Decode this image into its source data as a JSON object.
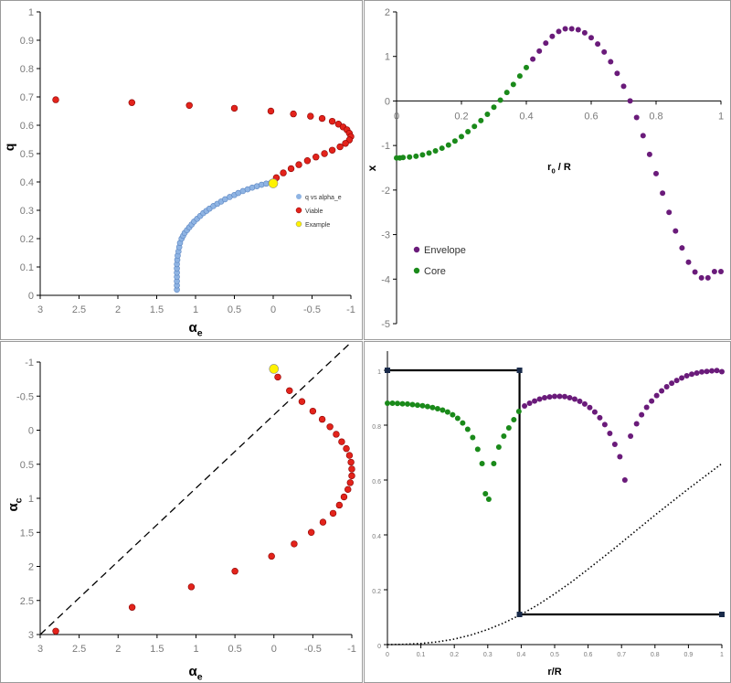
{
  "colors": {
    "q_series": "#8fb4e3",
    "viable": "#e3231b",
    "example": "#fff200",
    "envelope": "#6a1b7a",
    "core": "#1a8a1a",
    "axis": "#000000",
    "tick_label": "#7a7a7a"
  },
  "chart_data": [
    {
      "type": "scatter",
      "xlabel": "α",
      "xlabel_sub": "e",
      "ylabel": "q",
      "xlim": [
        3,
        -1
      ],
      "ylim": [
        0,
        1
      ],
      "x_reversed": true,
      "xticks": [
        3,
        2.5,
        2,
        1.5,
        1,
        0.5,
        0,
        -0.5,
        -1
      ],
      "yticks": [
        0,
        0.1,
        0.2,
        0.3,
        0.4,
        0.5,
        0.6,
        0.7,
        0.8,
        0.9,
        1
      ],
      "legend": [
        "q vs alpha_e",
        "Viable",
        "Example"
      ],
      "legend_position": "right",
      "series": [
        {
          "name": "q vs alpha_e",
          "x": [
            1.24,
            1.24,
            1.24,
            1.24,
            1.24,
            1.24,
            1.24,
            1.235,
            1.23,
            1.22,
            1.21,
            1.2,
            1.18,
            1.16,
            1.14,
            1.11,
            1.08,
            1.05,
            1.02,
            0.98,
            0.94,
            0.9,
            0.86,
            0.82,
            0.77,
            0.72,
            0.67,
            0.62,
            0.56,
            0.5,
            0.45,
            0.39,
            0.33,
            0.27,
            0.21,
            0.15,
            0.09,
            0.03,
            0.0
          ],
          "y": [
            0.02,
            0.035,
            0.05,
            0.065,
            0.08,
            0.095,
            0.11,
            0.125,
            0.14,
            0.155,
            0.17,
            0.185,
            0.2,
            0.21,
            0.22,
            0.23,
            0.24,
            0.25,
            0.26,
            0.27,
            0.28,
            0.29,
            0.298,
            0.306,
            0.315,
            0.323,
            0.331,
            0.339,
            0.347,
            0.354,
            0.361,
            0.368,
            0.374,
            0.38,
            0.385,
            0.39,
            0.394,
            0.397,
            0.398
          ]
        },
        {
          "name": "Viable",
          "x": [
            2.8,
            1.82,
            1.08,
            0.5,
            0.03,
            -0.26,
            -0.48,
            -0.63,
            -0.76,
            -0.84,
            -0.9,
            -0.95,
            -0.98,
            -1.0,
            -0.98,
            -0.93,
            -0.86,
            -0.76,
            -0.66,
            -0.55,
            -0.44,
            -0.33,
            -0.23,
            -0.13,
            -0.04
          ],
          "y": [
            0.69,
            0.68,
            0.67,
            0.66,
            0.65,
            0.64,
            0.632,
            0.624,
            0.614,
            0.604,
            0.594,
            0.584,
            0.572,
            0.56,
            0.548,
            0.536,
            0.524,
            0.512,
            0.5,
            0.488,
            0.475,
            0.461,
            0.447,
            0.432,
            0.415
          ]
        },
        {
          "name": "Example",
          "x": [
            0.0
          ],
          "y": [
            0.395
          ]
        }
      ]
    },
    {
      "type": "scatter",
      "xlabel": "r",
      "xlabel_sub": "0",
      "xlabel_suffix": " / R",
      "ylabel": "x",
      "xlim": [
        0,
        1
      ],
      "ylim": [
        -5,
        2
      ],
      "xticks": [
        0,
        0.2,
        0.4,
        0.6,
        0.8,
        1
      ],
      "yticks": [
        -5,
        -4,
        -3,
        -2,
        -1,
        0,
        1,
        2
      ],
      "legend": [
        "Envelope",
        "Core"
      ],
      "legend_position": "bottom-left",
      "series": [
        {
          "name": "Core",
          "x": [
            0.0,
            0.01,
            0.02,
            0.04,
            0.06,
            0.08,
            0.1,
            0.12,
            0.14,
            0.16,
            0.18,
            0.2,
            0.22,
            0.24,
            0.26,
            0.28,
            0.3,
            0.32,
            0.34,
            0.36,
            0.38,
            0.4
          ],
          "y": [
            -1.28,
            -1.28,
            -1.27,
            -1.26,
            -1.24,
            -1.21,
            -1.17,
            -1.12,
            -1.06,
            -0.99,
            -0.9,
            -0.8,
            -0.69,
            -0.57,
            -0.44,
            -0.3,
            -0.14,
            0.02,
            0.19,
            0.37,
            0.56,
            0.75
          ]
        },
        {
          "name": "Envelope",
          "x": [
            0.42,
            0.44,
            0.46,
            0.48,
            0.5,
            0.52,
            0.54,
            0.56,
            0.58,
            0.6,
            0.62,
            0.64,
            0.66,
            0.68,
            0.7,
            0.72,
            0.74,
            0.76,
            0.78,
            0.8,
            0.82,
            0.84,
            0.86,
            0.88,
            0.9,
            0.92,
            0.94,
            0.96,
            0.98,
            1.0
          ],
          "y": [
            0.94,
            1.12,
            1.3,
            1.45,
            1.56,
            1.62,
            1.62,
            1.6,
            1.53,
            1.42,
            1.28,
            1.1,
            0.88,
            0.62,
            0.33,
            0.0,
            -0.37,
            -0.78,
            -1.2,
            -1.63,
            -2.07,
            -2.5,
            -2.92,
            -3.3,
            -3.62,
            -3.84,
            -3.97,
            -3.97,
            -3.83,
            -3.83
          ]
        }
      ]
    },
    {
      "type": "scatter",
      "xlabel": "α",
      "xlabel_sub": "e",
      "ylabel": "α",
      "ylabel_sub": "c",
      "xlim": [
        3,
        -1
      ],
      "ylim": [
        3,
        -1
      ],
      "x_reversed": true,
      "y_reversed": true,
      "xticks": [
        3,
        2.5,
        2,
        1.5,
        1,
        0.5,
        0,
        -0.5,
        -1
      ],
      "yticks": [
        -1,
        -0.5,
        0,
        0.5,
        1,
        1.5,
        2,
        2.5,
        3
      ],
      "diagonal_dashed": true,
      "series": [
        {
          "name": "Viable",
          "x": [
            2.8,
            1.82,
            1.06,
            0.5,
            0.03,
            -0.26,
            -0.48,
            -0.63,
            -0.76,
            -0.84,
            -0.9,
            -0.95,
            -0.98,
            -1.0,
            -1.0,
            -0.99,
            -0.97,
            -0.93,
            -0.87,
            -0.8,
            -0.72,
            -0.62,
            -0.5,
            -0.36,
            -0.2,
            -0.05
          ],
          "y": [
            2.95,
            2.6,
            2.3,
            2.07,
            1.85,
            1.67,
            1.5,
            1.35,
            1.22,
            1.1,
            0.98,
            0.87,
            0.77,
            0.67,
            0.57,
            0.47,
            0.37,
            0.27,
            0.17,
            0.06,
            -0.05,
            -0.16,
            -0.28,
            -0.42,
            -0.58,
            -0.78
          ]
        },
        {
          "name": "Example",
          "x": [
            0.0
          ],
          "y": [
            -0.9
          ]
        }
      ]
    },
    {
      "type": "scatter",
      "xlabel": "r/R",
      "xlim": [
        0,
        1
      ],
      "ylim": [
        0,
        1.05
      ],
      "xticks": [
        0,
        0.1,
        0.2,
        0.3,
        0.4,
        0.5,
        0.6,
        0.7,
        0.8,
        0.9,
        1
      ],
      "yticks": [
        0,
        0.2,
        0.4,
        0.6,
        0.8,
        1
      ],
      "series": [
        {
          "name": "Core",
          "x": [
            0.0,
            0.015,
            0.03,
            0.045,
            0.06,
            0.075,
            0.09,
            0.105,
            0.12,
            0.135,
            0.15,
            0.165,
            0.18,
            0.195,
            0.21,
            0.225,
            0.24,
            0.255,
            0.27,
            0.283,
            0.293,
            0.303,
            0.318,
            0.333,
            0.348,
            0.363,
            0.378,
            0.393
          ],
          "y": [
            0.88,
            0.88,
            0.879,
            0.878,
            0.877,
            0.875,
            0.873,
            0.871,
            0.868,
            0.864,
            0.86,
            0.855,
            0.848,
            0.838,
            0.825,
            0.808,
            0.785,
            0.755,
            0.712,
            0.66,
            0.55,
            0.53,
            0.66,
            0.72,
            0.76,
            0.79,
            0.82,
            0.85
          ]
        },
        {
          "name": "Envelope",
          "x": [
            0.41,
            0.425,
            0.44,
            0.455,
            0.47,
            0.485,
            0.5,
            0.515,
            0.53,
            0.545,
            0.56,
            0.575,
            0.59,
            0.605,
            0.62,
            0.635,
            0.65,
            0.665,
            0.68,
            0.695,
            0.71,
            0.727,
            0.745,
            0.76,
            0.775,
            0.79,
            0.805,
            0.82,
            0.835,
            0.85,
            0.865,
            0.88,
            0.895,
            0.91,
            0.925,
            0.94,
            0.955,
            0.97,
            0.985,
            1.0
          ],
          "y": [
            0.87,
            0.88,
            0.888,
            0.895,
            0.9,
            0.903,
            0.905,
            0.905,
            0.904,
            0.9,
            0.895,
            0.887,
            0.877,
            0.864,
            0.848,
            0.827,
            0.802,
            0.77,
            0.73,
            0.685,
            0.6,
            0.76,
            0.805,
            0.838,
            0.865,
            0.888,
            0.908,
            0.925,
            0.94,
            0.953,
            0.963,
            0.972,
            0.98,
            0.986,
            0.99,
            0.994,
            0.996,
            0.998,
            0.999,
            0.995
          ]
        },
        {
          "name": "dotted",
          "x": [
            0,
            0.05,
            0.1,
            0.15,
            0.2,
            0.25,
            0.3,
            0.35,
            0.4,
            0.45,
            0.5,
            0.55,
            0.6,
            0.65,
            0.7,
            0.75,
            0.8,
            0.85,
            0.9,
            0.95,
            1.0
          ],
          "y": [
            0,
            0.001,
            0.004,
            0.01,
            0.02,
            0.035,
            0.055,
            0.08,
            0.11,
            0.145,
            0.185,
            0.228,
            0.275,
            0.323,
            0.372,
            0.422,
            0.472,
            0.52,
            0.568,
            0.614,
            0.66
          ]
        },
        {
          "name": "step",
          "x": [
            0,
            0.395,
            0.395,
            1.0
          ],
          "y": [
            1.0,
            1.0,
            0.11,
            0.11
          ]
        }
      ]
    }
  ],
  "legend_tl": {
    "item1": "q vs alpha_e",
    "item2": "Viable",
    "item3": "Example"
  },
  "legend_tr": {
    "item1": "Envelope",
    "item2": "Core"
  }
}
